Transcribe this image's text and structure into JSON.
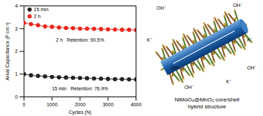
{
  "chart_data": {
    "type": "line",
    "x_label": "Cycles (N)",
    "y_label": "Areal Capacitance (F cm⁻²)",
    "x": [
      0,
      250,
      500,
      750,
      1000,
      1250,
      1500,
      1750,
      2000,
      2250,
      2500,
      2750,
      3000,
      3250,
      3500,
      3750,
      4000
    ],
    "series": [
      {
        "name": "15 min",
        "color": "#222222",
        "marker": "circle",
        "values": [
          1.0,
          0.95,
          0.92,
          0.9,
          0.88,
          0.86,
          0.85,
          0.84,
          0.83,
          0.82,
          0.81,
          0.8,
          0.79,
          0.78,
          0.78,
          0.77,
          0.77
        ]
      },
      {
        "name": "2 h",
        "color": "#e8281e",
        "marker": "circle",
        "values": [
          3.25,
          3.2,
          3.15,
          3.1,
          3.08,
          3.05,
          3.03,
          3.02,
          3.0,
          3.0,
          2.99,
          2.98,
          2.97,
          2.96,
          2.95,
          2.95,
          2.94
        ]
      }
    ],
    "annotations": [
      {
        "text": "2 h   Retention: 90.5%",
        "x": 2000,
        "y": 2.5
      },
      {
        "text": "15 min   Retention: 76.9%",
        "x": 2000,
        "y": 0.35
      }
    ],
    "xlim": [
      0,
      4000
    ],
    "xticks": [
      0,
      1000,
      2000,
      3000,
      4000
    ],
    "ylim": [
      0,
      4
    ],
    "yticks": [
      0,
      1,
      2,
      3,
      4
    ],
    "legend": "top-left"
  },
  "diagram": {
    "ions": [
      "OH⁻",
      "K⁺",
      "OH⁻",
      "K⁺",
      "OH⁻",
      "K⁺",
      "OH⁻",
      "OH⁻"
    ],
    "caption": [
      "NiMoO₄@MnO₂ core/shell",
      "hybrid structure"
    ]
  }
}
